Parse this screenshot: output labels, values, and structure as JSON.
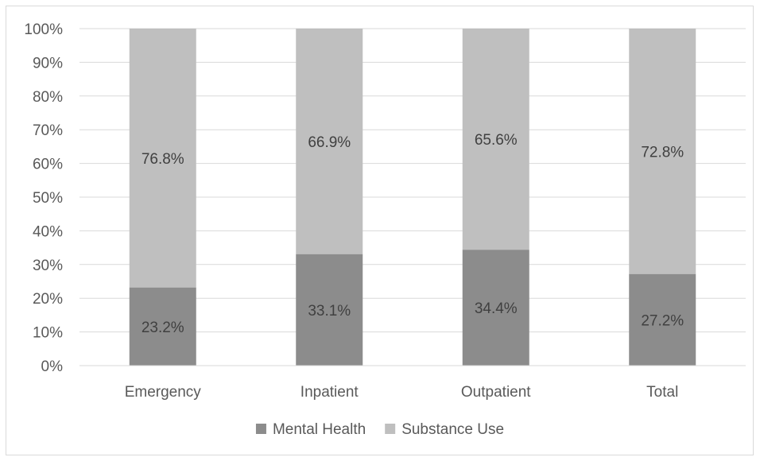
{
  "chart_data": {
    "type": "bar",
    "stacked": true,
    "categories": [
      "Emergency",
      "Inpatient",
      "Outpatient",
      "Total"
    ],
    "series": [
      {
        "name": "Mental Health",
        "values": [
          23.2,
          33.1,
          34.4,
          27.2
        ],
        "labels": [
          "23.2%",
          "33.1%",
          "34.4%",
          "27.2%"
        ],
        "color": "#8c8c8c"
      },
      {
        "name": "Substance Use",
        "values": [
          76.8,
          66.9,
          65.6,
          72.8
        ],
        "labels": [
          "76.8%",
          "66.9%",
          "65.6%",
          "72.8%"
        ],
        "color": "#bfbfbf"
      }
    ],
    "y_ticks": [
      "0%",
      "10%",
      "20%",
      "30%",
      "40%",
      "50%",
      "60%",
      "70%",
      "80%",
      "90%",
      "100%"
    ],
    "ylim": [
      0,
      100
    ],
    "title": "",
    "xlabel": "",
    "ylabel": "",
    "grid": true,
    "legend_position": "bottom",
    "gridline_color": "#d9d9d9"
  }
}
